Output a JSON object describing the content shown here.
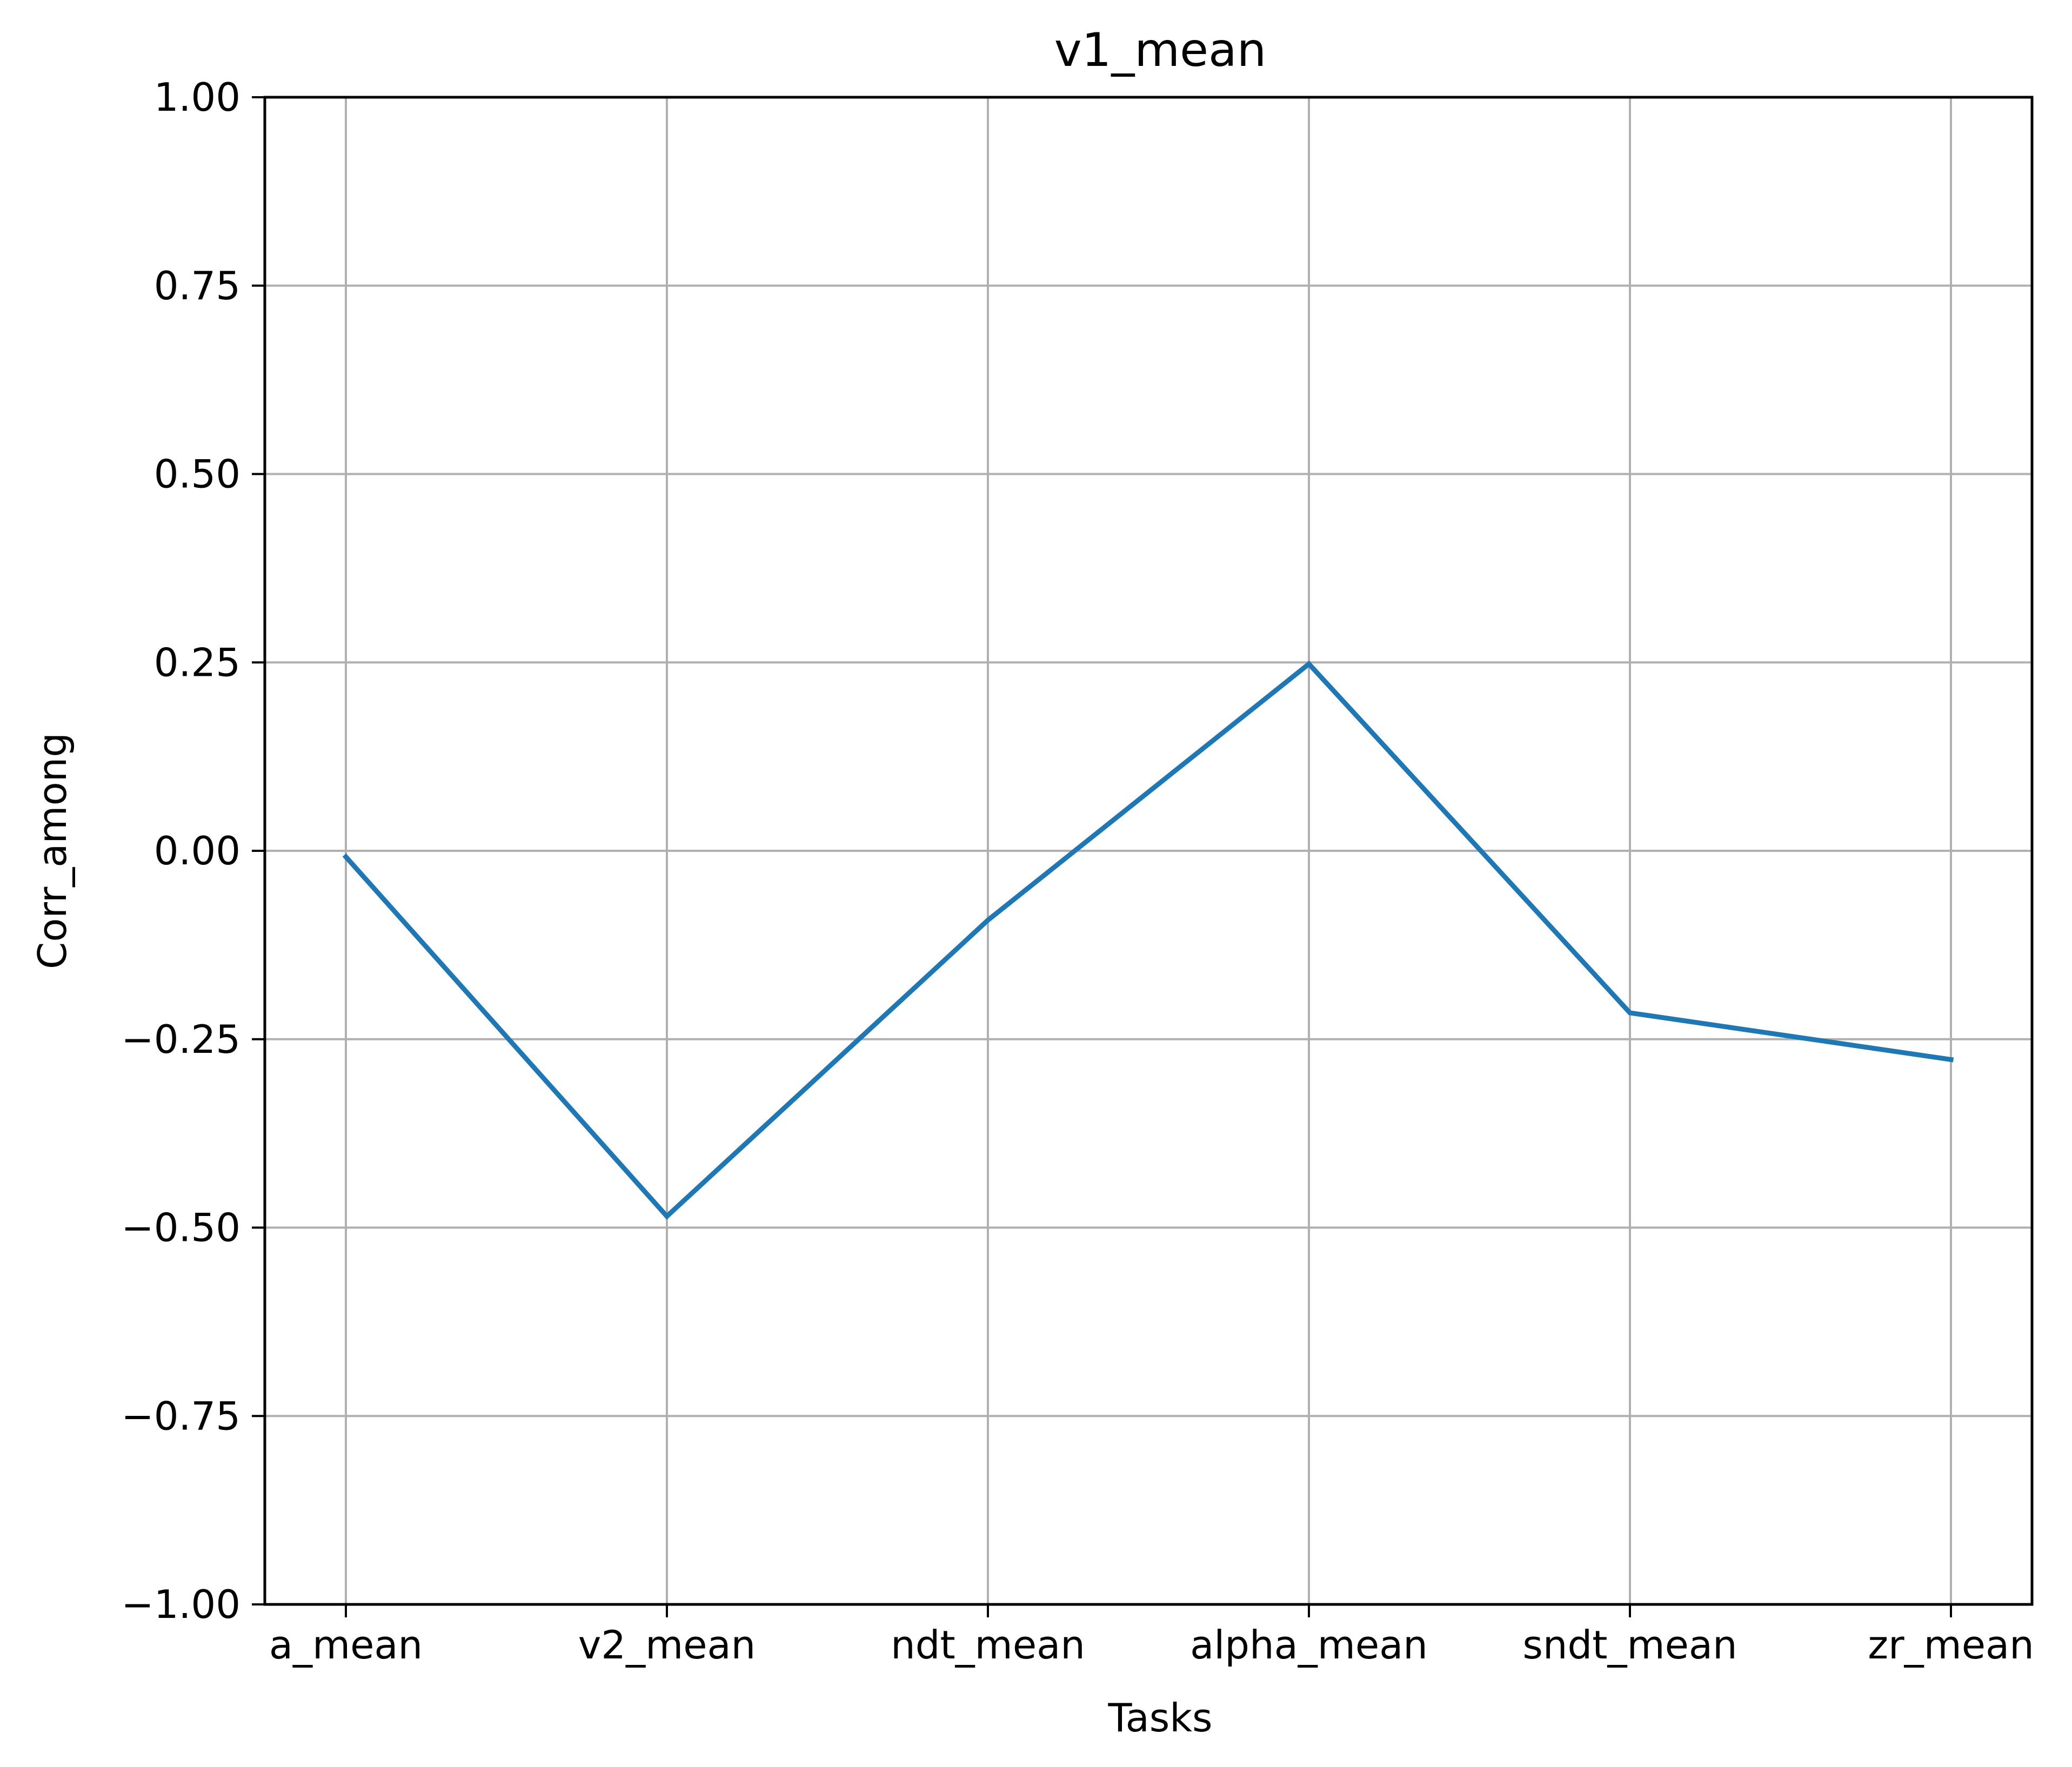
{
  "chart_data": {
    "type": "line",
    "title": "v1_mean",
    "xlabel": "Tasks",
    "ylabel": "Corr_among",
    "categories": [
      "a_mean",
      "v2_mean",
      "ndt_mean",
      "alpha_mean",
      "sndt_mean",
      "zr_mean"
    ],
    "series": [
      {
        "values": [
          -0.008,
          -0.485,
          -0.092,
          0.248,
          -0.215,
          -0.277
        ],
        "color": "#1f77b4"
      }
    ],
    "ylim": [
      -1.0,
      1.0
    ],
    "yticks": [
      "−1.00",
      "−0.75",
      "−0.50",
      "−0.25",
      "0.00",
      "0.25",
      "0.50",
      "0.75",
      "1.00"
    ],
    "ytick_values": [
      -1.0,
      -0.75,
      -0.5,
      -0.25,
      0.0,
      0.25,
      0.5,
      0.75,
      1.0
    ],
    "grid": true,
    "legend": "none"
  }
}
